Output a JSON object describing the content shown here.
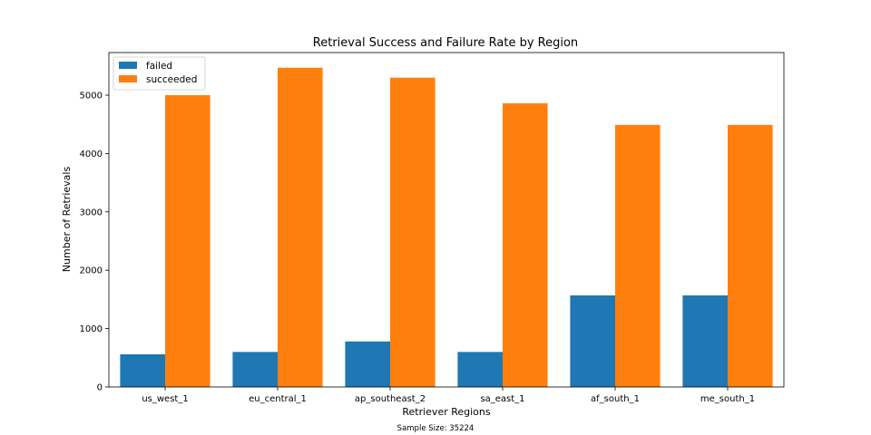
{
  "chart_data": {
    "type": "bar",
    "title": "Retrieval Success and Failure Rate by Region",
    "xlabel": "Retriever Regions",
    "ylabel": "Number of Retrievals",
    "footnote": "Sample Size: 35224",
    "categories": [
      "us_west_1",
      "eu_central_1",
      "ap_southeast_2",
      "sa_east_1",
      "af_south_1",
      "me_south_1"
    ],
    "series": [
      {
        "name": "failed",
        "color": "#1f77b4",
        "values": [
          560,
          600,
          780,
          600,
          1570,
          1570
        ]
      },
      {
        "name": "succeeded",
        "color": "#ff7f0e",
        "values": [
          5000,
          5470,
          5300,
          4860,
          4490,
          4490
        ]
      }
    ],
    "ylim": [
      0,
      5730
    ],
    "yticks": [
      0,
      1000,
      2000,
      3000,
      4000,
      5000
    ],
    "grid": false,
    "legend_position": "top-left"
  }
}
